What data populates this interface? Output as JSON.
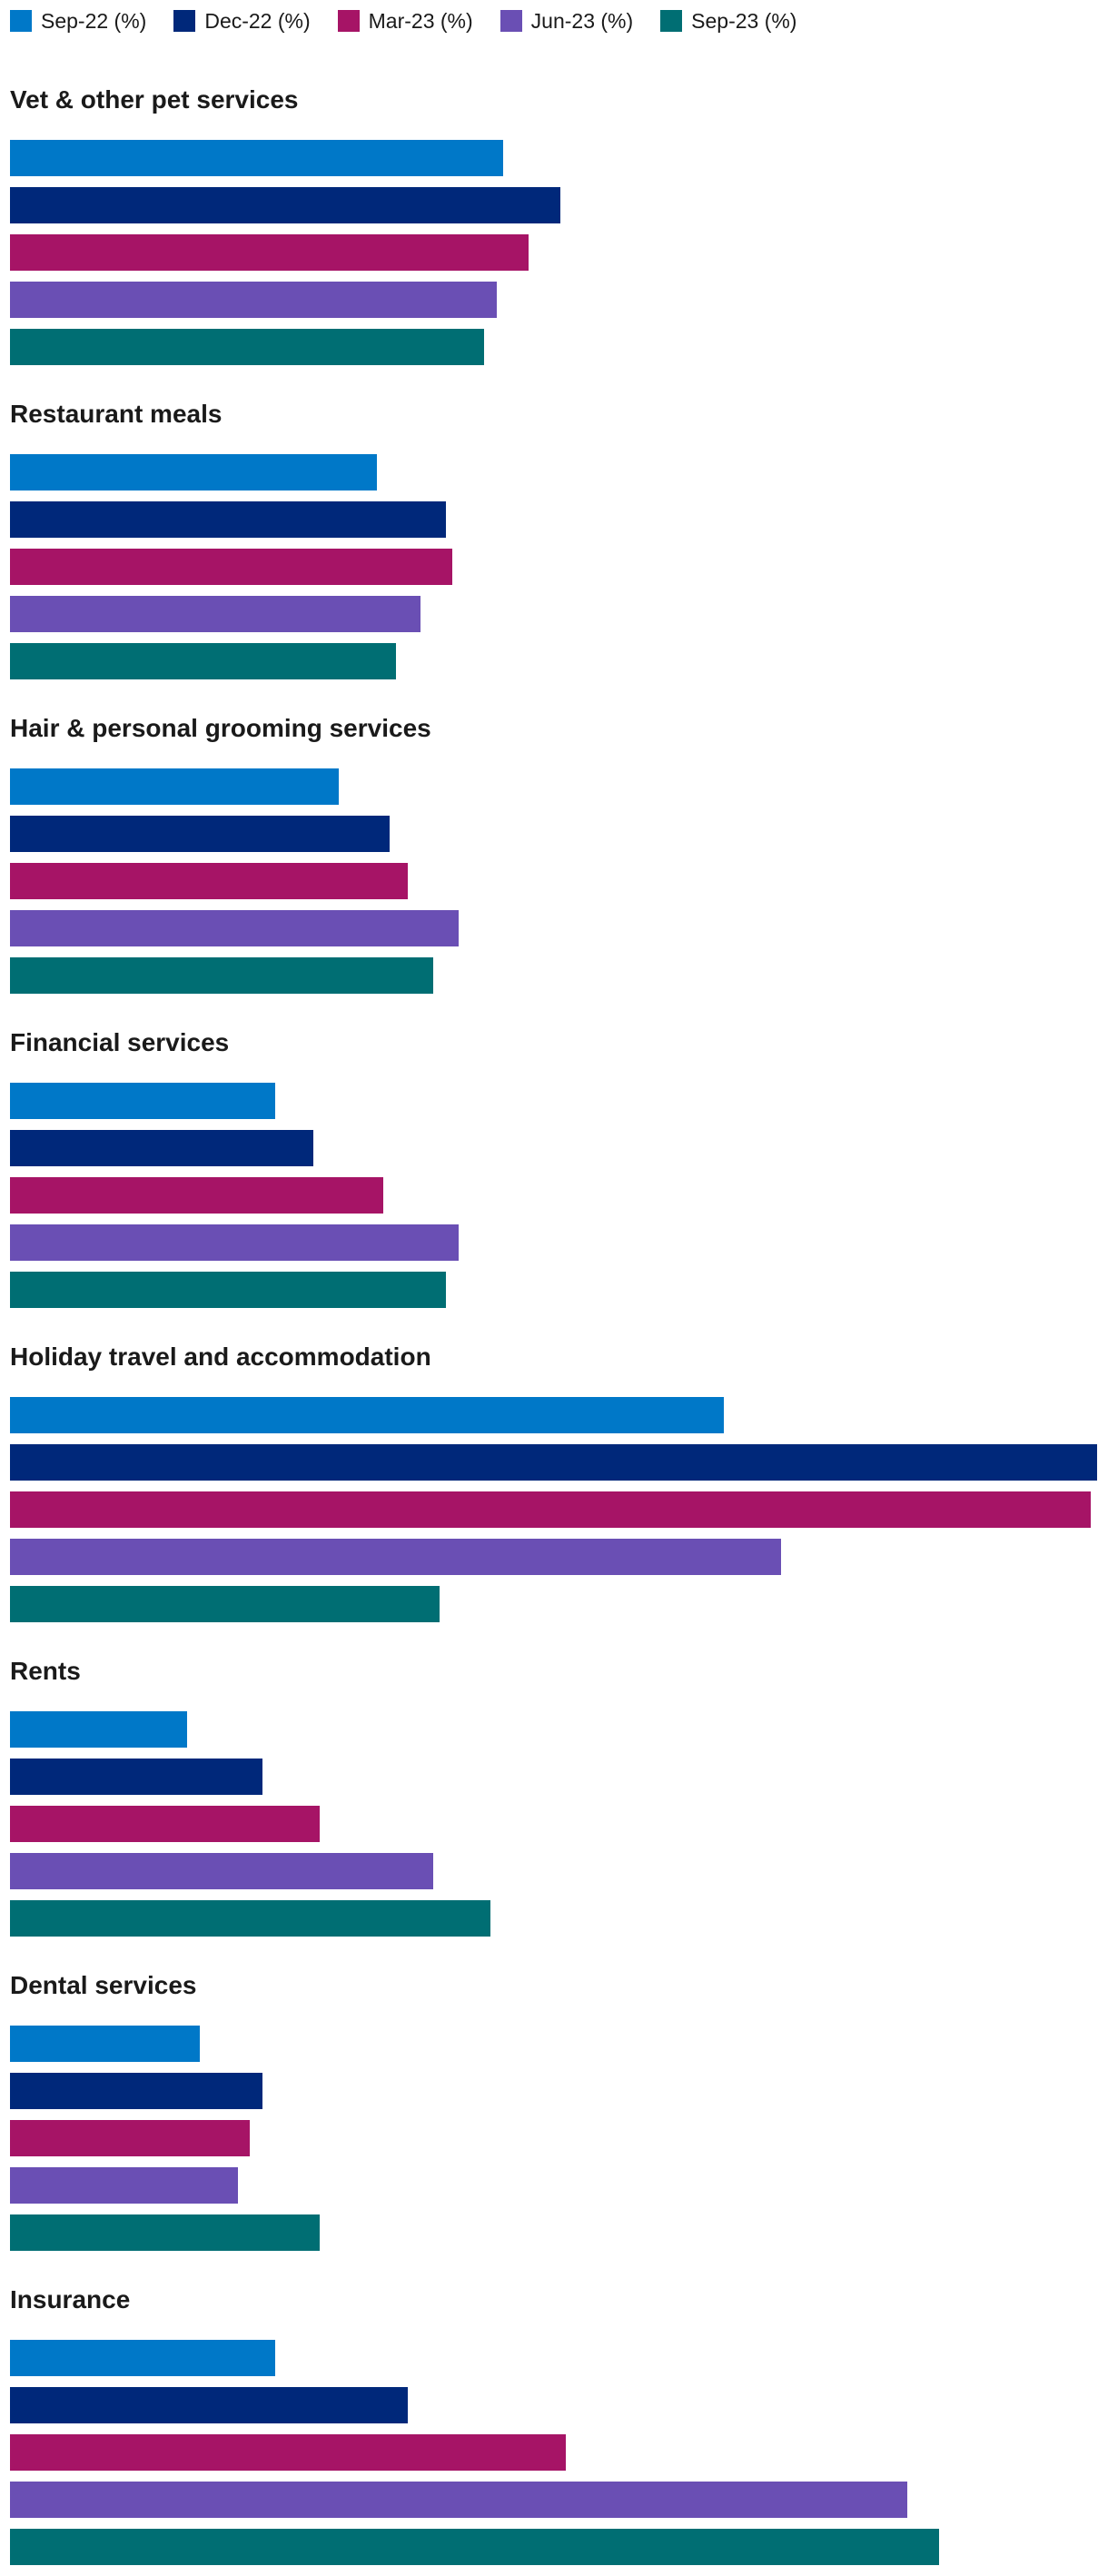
{
  "chart_data": {
    "type": "bar",
    "orientation": "horizontal",
    "categories": [
      "Vet & other pet services",
      "Restaurant meals",
      "Hair & personal grooming services",
      "Financial services",
      "Holiday travel and accommodation",
      "Rents",
      "Dental services",
      "Insurance"
    ],
    "series": [
      {
        "name": "Sep-22 (%)",
        "color": "#0078c8",
        "values": [
          78,
          58,
          52,
          42,
          113,
          28,
          30,
          42
        ]
      },
      {
        "name": "Dec-22 (%)",
        "color": "#00287a",
        "values": [
          87,
          69,
          60,
          48,
          172,
          40,
          40,
          63
        ]
      },
      {
        "name": "Mar-23 (%)",
        "color": "#a61466",
        "values": [
          82,
          70,
          63,
          59,
          171,
          49,
          38,
          88
        ]
      },
      {
        "name": "Jun-23 (%)",
        "color": "#6a4fb4",
        "values": [
          77,
          65,
          71,
          71,
          122,
          67,
          36,
          142
        ]
      },
      {
        "name": "Sep-23 (%)",
        "color": "#006e73",
        "values": [
          75,
          61,
          67,
          69,
          68,
          76,
          49,
          147
        ]
      }
    ],
    "xlim": [
      0,
      172
    ],
    "legend_position": "top-left",
    "grid": false,
    "title": "",
    "xlabel": "",
    "ylabel": ""
  }
}
